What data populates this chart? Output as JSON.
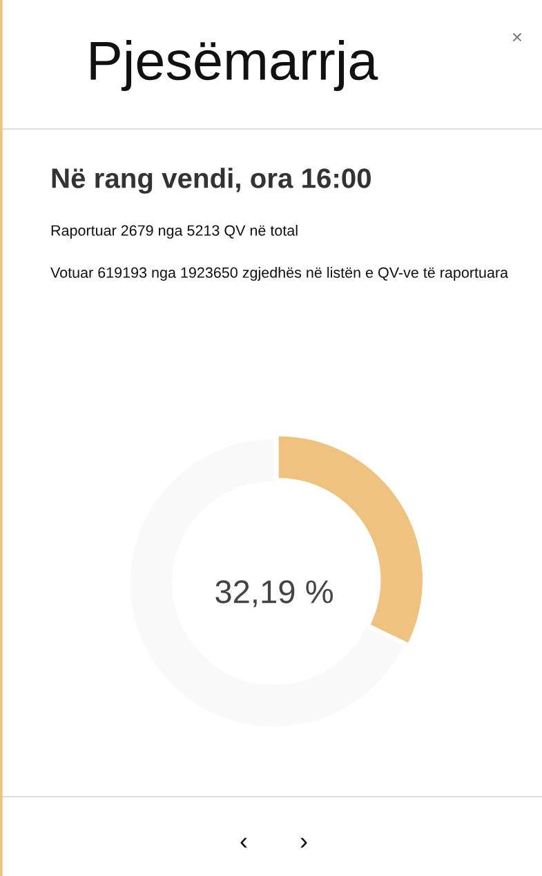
{
  "chart_data": {
    "type": "donut",
    "title": "Pjesëmarrja",
    "subtitle": "Në rang vendi, ora 16:00",
    "categories": [
      null,
      null
    ],
    "values": [
      32.19,
      67.81
    ],
    "colors": [
      "#eec27f",
      "#f9f9f9"
    ],
    "annotations": [
      "Raportuar 2679 nga 5213 QV në total",
      "Votuar 619193 nga 1923650 zgjedhës në listën e QV-ve të raportuara",
      "32,19 %",
      "×",
      "‹",
      "›"
    ],
    "legend": false
  }
}
